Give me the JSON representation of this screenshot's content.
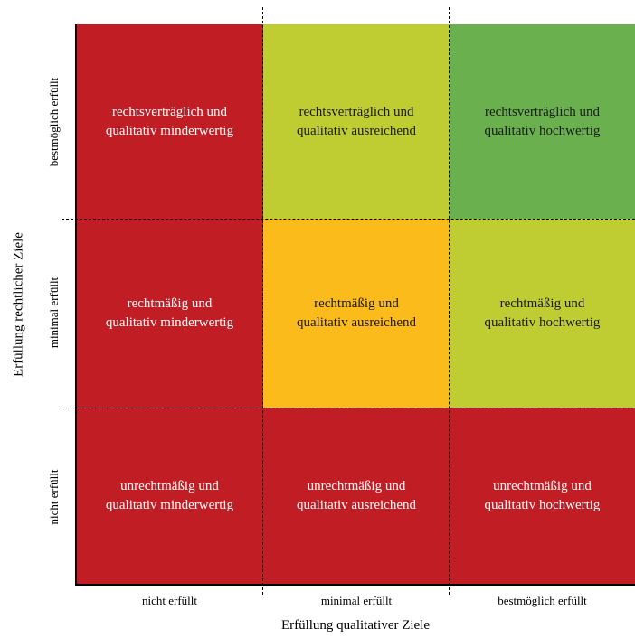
{
  "matrix": {
    "rows": [
      {
        "cells": [
          {
            "line1": "rechtsverträglich und",
            "line2": "qualitativ minderwertig",
            "color": "#c01d24"
          },
          {
            "line1": "rechtsverträglich und",
            "line2": "qualitativ ausreichend",
            "color": "#bfcc32"
          },
          {
            "line1": "rechtsverträglich und",
            "line2": "qualitativ hochwertig",
            "color": "#6ab04f"
          }
        ]
      },
      {
        "cells": [
          {
            "line1": "rechtmäßig und",
            "line2": "qualitativ minderwertig",
            "color": "#c01d24"
          },
          {
            "line1": "rechtmäßig und",
            "line2": "qualitativ ausreichend",
            "color": "#fbbb1b"
          },
          {
            "line1": "rechtmäßig und",
            "line2": "qualitativ hochwertig",
            "color": "#bfcc32"
          }
        ]
      },
      {
        "cells": [
          {
            "line1": "unrechtmäßig und",
            "line2": "qualitativ minderwertig",
            "color": "#c01d24"
          },
          {
            "line1": "unrechtmäßig und",
            "line2": "qualitativ ausreichend",
            "color": "#c01d24"
          },
          {
            "line1": "unrechtmäßig und",
            "line2": "qualitativ hochwertig",
            "color": "#c01d24"
          }
        ]
      }
    ]
  },
  "x_axis": {
    "label": "Erfüllung qualitativer Ziele",
    "ticks": [
      "nicht erfüllt",
      "minimal erfüllt",
      "bestmöglich erfüllt"
    ]
  },
  "y_axis": {
    "label": "Erfüllung rechtlicher Ziele",
    "ticks": [
      "bestmöglich erfüllt",
      "minimal erfüllt",
      "nicht erfüllt"
    ]
  }
}
